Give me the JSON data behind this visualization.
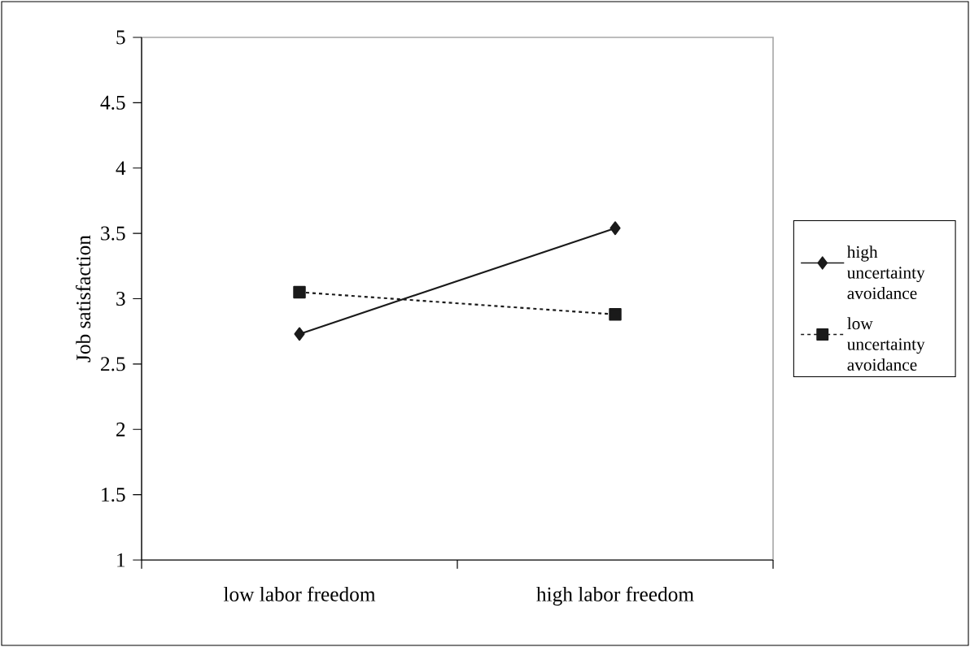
{
  "chart_data": {
    "type": "line",
    "ylabel": "Job satisfaction",
    "categories": [
      "low labor freedom",
      "high labor freedom"
    ],
    "series": [
      {
        "name": "high uncertainty avoidance",
        "color": "#1a1a1a",
        "values": [
          2.73,
          3.54
        ],
        "marker": "diamond",
        "line_style": "solid"
      },
      {
        "name": "low uncertainty avoidance",
        "color": "#1a1a1a",
        "values": [
          3.05,
          2.88
        ],
        "marker": "square",
        "line_style": "dashed"
      }
    ],
    "ylim": [
      1,
      5
    ],
    "yticks": [
      1,
      1.5,
      2,
      2.5,
      3,
      3.5,
      4,
      4.5,
      5
    ],
    "grid": false,
    "legend": "right"
  }
}
